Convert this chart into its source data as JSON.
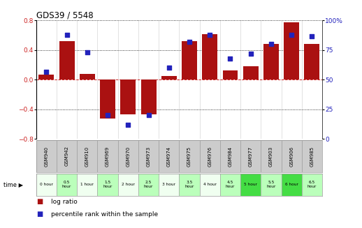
{
  "title": "GDS39 / 5548",
  "samples": [
    "GSM940",
    "GSM942",
    "GSM910",
    "GSM969",
    "GSM970",
    "GSM973",
    "GSM974",
    "GSM975",
    "GSM976",
    "GSM984",
    "GSM977",
    "GSM903",
    "GSM906",
    "GSM985"
  ],
  "time_labels": [
    "0 hour",
    "0.5\nhour",
    "1 hour",
    "1.5\nhour",
    "2 hour",
    "2.5\nhour",
    "3 hour",
    "3.5\nhour",
    "4 hour",
    "4.5\nhour",
    "5 hour",
    "5.5\nhour",
    "6 hour",
    "6.5\nhour"
  ],
  "log_ratio": [
    0.07,
    0.52,
    0.08,
    -0.52,
    -0.47,
    -0.47,
    0.05,
    0.52,
    0.62,
    0.13,
    0.18,
    0.48,
    0.78,
    0.48
  ],
  "percentile": [
    57,
    88,
    73,
    20,
    12,
    20,
    60,
    82,
    88,
    68,
    72,
    80,
    88,
    87
  ],
  "ylim_left": [
    -0.8,
    0.8
  ],
  "ylim_right": [
    0,
    100
  ],
  "yticks_left": [
    -0.8,
    -0.4,
    0,
    0.4,
    0.8
  ],
  "yticks_right": [
    0,
    25,
    50,
    75,
    100
  ],
  "bar_color": "#aa1111",
  "dot_color": "#2222bb",
  "bg_color": "#ffffff",
  "legend_bar_label": "log ratio",
  "legend_dot_label": "percentile rank within the sample",
  "time_cell_colors": [
    "#f0fff0",
    "#bbffbb",
    "#f0fff0",
    "#bbffbb",
    "#f0fff0",
    "#bbffbb",
    "#f0fff0",
    "#bbffbb",
    "#f0fff0",
    "#bbffbb",
    "#44dd44",
    "#bbffbb",
    "#44dd44",
    "#bbffbb"
  ],
  "gsm_cell_color": "#cccccc",
  "gsm_border_color": "#999999"
}
